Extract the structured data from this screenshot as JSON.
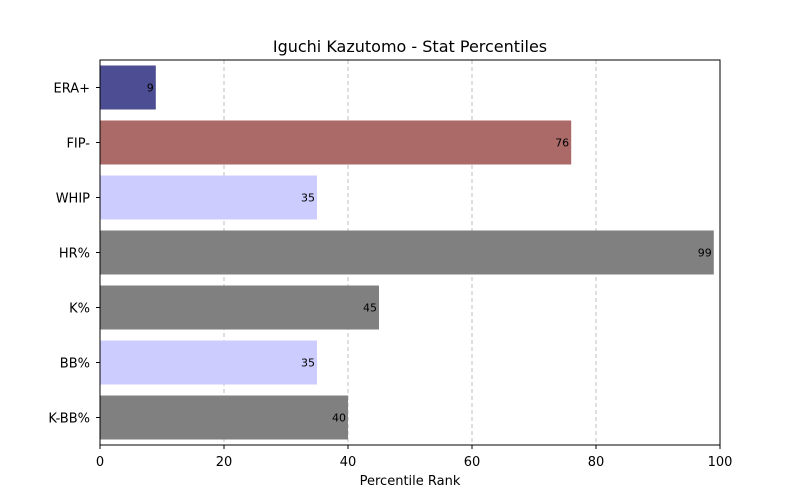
{
  "chart_data": {
    "type": "bar",
    "orientation": "horizontal",
    "title": "Iguchi Kazutomo - Stat Percentiles",
    "xlabel": "Percentile Rank",
    "ylabel": "",
    "xlim": [
      0,
      100
    ],
    "xticks": [
      "0",
      "20",
      "40",
      "60",
      "80",
      "100"
    ],
    "grid": "x-dashed",
    "categories": [
      "ERA+",
      "FIP-",
      "WHIP",
      "HR%",
      "K%",
      "BB%",
      "K-BB%"
    ],
    "values": [
      9,
      76,
      35,
      99,
      45,
      35,
      40
    ],
    "value_labels": [
      "9",
      "76",
      "35",
      "99",
      "45",
      "35",
      "40"
    ],
    "colors": [
      "#4d4d94",
      "#ab6a67",
      "#ccccff",
      "#808080",
      "#808080",
      "#ccccff",
      "#808080"
    ]
  }
}
